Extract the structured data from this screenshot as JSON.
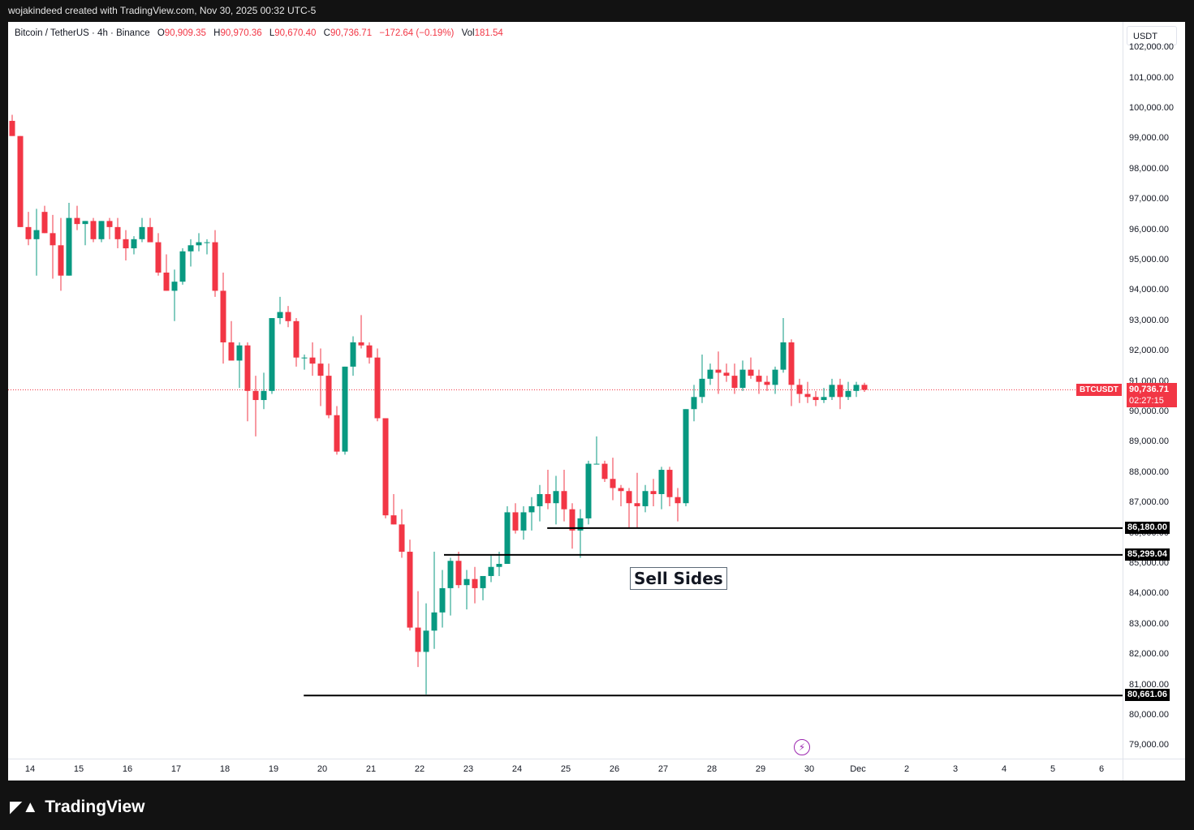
{
  "header": {
    "credit": "wojakindeed created with TradingView.com, Nov 30, 2025 00:32 UTC-5"
  },
  "legend": {
    "symbol": "Bitcoin / TetherUS · 4h · Binance",
    "open_label": "O",
    "open": "90,909.35",
    "high_label": "H",
    "high": "90,970.36",
    "low_label": "L",
    "low": "90,670.40",
    "close_label": "C",
    "close": "90,736.71",
    "change": "−172.64 (−0.19%)",
    "vol_label": "Vol",
    "vol": "181.54"
  },
  "currency": "USDT",
  "current_price": {
    "symbol": "BTCUSDT",
    "price": "90,736.71",
    "countdown": "02:27:15",
    "value": 90736.71
  },
  "levels": [
    {
      "label": "86,180.00",
      "value": 86180.0,
      "from_day": 24.62
    },
    {
      "label": "85,299.04",
      "value": 85299.04,
      "from_day": 22.5
    },
    {
      "label": "80,661.06",
      "value": 80661.06,
      "from_day": 19.62
    }
  ],
  "annotation": {
    "text": "Sell Sides"
  },
  "footer": {
    "brand": "TradingView",
    "logo": "tv-logo-icon"
  },
  "colors": {
    "up": "#089981",
    "down": "#f23645",
    "level": "#000000"
  },
  "chart_data": {
    "type": "candlestick",
    "title": "Bitcoin / TetherUS · 4h · Binance",
    "yticks": [
      "102,000.00",
      "101,000.00",
      "100,000.00",
      "99,000.00",
      "98,000.00",
      "97,000.00",
      "96,000.00",
      "95,000.00",
      "94,000.00",
      "93,000.00",
      "92,000.00",
      "91,000.00",
      "90,000.00",
      "89,000.00",
      "88,000.00",
      "87,000.00",
      "86,000.00",
      "85,000.00",
      "84,000.00",
      "83,000.00",
      "82,000.00",
      "81,000.00",
      "80,000.00",
      "79,000.00"
    ],
    "ylim": [
      78700,
      102400
    ],
    "xticks": [
      "14",
      "15",
      "16",
      "17",
      "18",
      "19",
      "20",
      "21",
      "22",
      "23",
      "24",
      "25",
      "26",
      "27",
      "28",
      "29",
      "30",
      "Dec",
      "2",
      "3",
      "4",
      "5",
      "6"
    ],
    "ohlc": [
      [
        99600,
        99800,
        99100,
        99100
      ],
      [
        99100,
        99100,
        96100,
        96100
      ],
      [
        96100,
        96600,
        95500,
        95700
      ],
      [
        95700,
        96700,
        94500,
        96000
      ],
      [
        96600,
        96800,
        95900,
        95900
      ],
      [
        95900,
        96500,
        94400,
        95500
      ],
      [
        95500,
        96400,
        94000,
        94500
      ],
      [
        94500,
        96900,
        94500,
        96400
      ],
      [
        96400,
        96800,
        96000,
        96200
      ],
      [
        96200,
        96300,
        95500,
        96300
      ],
      [
        96300,
        96400,
        95600,
        95700
      ],
      [
        95700,
        96300,
        95600,
        96300
      ],
      [
        96300,
        96400,
        95700,
        96100
      ],
      [
        96100,
        96400,
        95400,
        95700
      ],
      [
        95700,
        96000,
        95000,
        95400
      ],
      [
        95400,
        95800,
        95200,
        95700
      ],
      [
        95700,
        96400,
        95600,
        96100
      ],
      [
        96100,
        96400,
        95700,
        95600
      ],
      [
        95600,
        95900,
        94500,
        94600
      ],
      [
        94600,
        95200,
        94000,
        94000
      ],
      [
        94000,
        94700,
        93000,
        94300
      ],
      [
        94300,
        95400,
        94200,
        95300
      ],
      [
        95300,
        95700,
        94800,
        95500
      ],
      [
        95500,
        95900,
        95300,
        95600
      ],
      [
        95600,
        95700,
        95200,
        95600
      ],
      [
        95600,
        96000,
        93800,
        94000
      ],
      [
        94000,
        94600,
        91600,
        92300
      ],
      [
        92300,
        93000,
        91800,
        91700
      ],
      [
        91700,
        92300,
        90800,
        92200
      ],
      [
        92200,
        92300,
        89700,
        90700
      ],
      [
        90700,
        91200,
        89200,
        90400
      ],
      [
        90400,
        91300,
        90100,
        90700
      ],
      [
        90700,
        93100,
        90600,
        93100
      ],
      [
        93100,
        93800,
        92900,
        93300
      ],
      [
        93300,
        93500,
        92800,
        93000
      ],
      [
        93000,
        93100,
        91500,
        91800
      ],
      [
        91800,
        91900,
        91400,
        91800
      ],
      [
        91800,
        92300,
        91200,
        91600
      ],
      [
        91600,
        92100,
        90200,
        91200
      ],
      [
        91200,
        91600,
        89800,
        89900
      ],
      [
        89900,
        90200,
        88600,
        88700
      ],
      [
        88700,
        91500,
        88600,
        91500
      ],
      [
        91500,
        92500,
        91200,
        92300
      ],
      [
        92300,
        93200,
        92100,
        92200
      ],
      [
        92200,
        92300,
        91600,
        91800
      ],
      [
        91800,
        92100,
        89700,
        89800
      ],
      [
        89800,
        89800,
        86500,
        86600
      ],
      [
        86600,
        87300,
        86300,
        86300
      ],
      [
        86300,
        86800,
        85200,
        85400
      ],
      [
        85400,
        85800,
        82800,
        82900
      ],
      [
        82900,
        84100,
        81600,
        82100
      ],
      [
        82100,
        83700,
        80700,
        82800
      ],
      [
        82800,
        85400,
        82200,
        83400
      ],
      [
        83400,
        84800,
        82900,
        84200
      ],
      [
        84200,
        85200,
        83300,
        85100
      ],
      [
        85100,
        85400,
        84200,
        84300
      ],
      [
        84300,
        84800,
        83500,
        84500
      ],
      [
        84500,
        84900,
        83700,
        84200
      ],
      [
        84200,
        84600,
        83800,
        84600
      ],
      [
        84600,
        85300,
        84400,
        84900
      ],
      [
        84900,
        85400,
        84600,
        85000
      ],
      [
        85000,
        86900,
        85100,
        86700
      ],
      [
        86700,
        87000,
        86000,
        86100
      ],
      [
        86100,
        86900,
        85800,
        86700
      ],
      [
        86700,
        87200,
        86100,
        86900
      ],
      [
        86900,
        87600,
        86400,
        87300
      ],
      [
        87300,
        88100,
        86800,
        87000
      ],
      [
        87000,
        87900,
        86300,
        87400
      ],
      [
        87400,
        88100,
        86400,
        86800
      ],
      [
        86800,
        87000,
        85500,
        86100
      ],
      [
        86100,
        86800,
        85200,
        86500
      ],
      [
        86500,
        88400,
        86300,
        88300
      ],
      [
        88300,
        89200,
        88300,
        88300
      ],
      [
        88300,
        88400,
        87700,
        87800
      ],
      [
        87800,
        88500,
        87100,
        87500
      ],
      [
        87500,
        87600,
        86900,
        87400
      ],
      [
        87400,
        87500,
        86200,
        87000
      ],
      [
        87000,
        88000,
        86200,
        86900
      ],
      [
        86900,
        87600,
        86700,
        87400
      ],
      [
        87400,
        87800,
        86900,
        87300
      ],
      [
        87300,
        88200,
        86800,
        88100
      ],
      [
        88100,
        88200,
        86900,
        87200
      ],
      [
        87200,
        87500,
        86400,
        87000
      ],
      [
        87000,
        90100,
        86900,
        90100
      ],
      [
        90100,
        90900,
        89700,
        90500
      ],
      [
        90500,
        91900,
        90300,
        91100
      ],
      [
        91100,
        91600,
        90900,
        91400
      ],
      [
        91400,
        92000,
        90600,
        91300
      ],
      [
        91300,
        91600,
        91000,
        91200
      ],
      [
        91200,
        91600,
        90600,
        90800
      ],
      [
        90800,
        91700,
        90700,
        91400
      ],
      [
        91400,
        91800,
        91100,
        91200
      ],
      [
        91200,
        91400,
        90600,
        91000
      ],
      [
        91000,
        91200,
        90700,
        90900
      ],
      [
        90900,
        91500,
        90600,
        91400
      ],
      [
        91400,
        93100,
        91300,
        92300
      ],
      [
        92300,
        92400,
        90200,
        90900
      ],
      [
        90900,
        91100,
        90300,
        90600
      ],
      [
        90600,
        91000,
        90300,
        90500
      ],
      [
        90500,
        90700,
        90200,
        90400
      ],
      [
        90400,
        90800,
        90300,
        90500
      ],
      [
        90500,
        91100,
        90400,
        90900
      ],
      [
        90900,
        91100,
        90100,
        90500
      ],
      [
        90500,
        91000,
        90400,
        90700
      ],
      [
        90700,
        91000,
        90500,
        90900
      ],
      [
        90900,
        90970,
        90670,
        90737
      ]
    ]
  }
}
